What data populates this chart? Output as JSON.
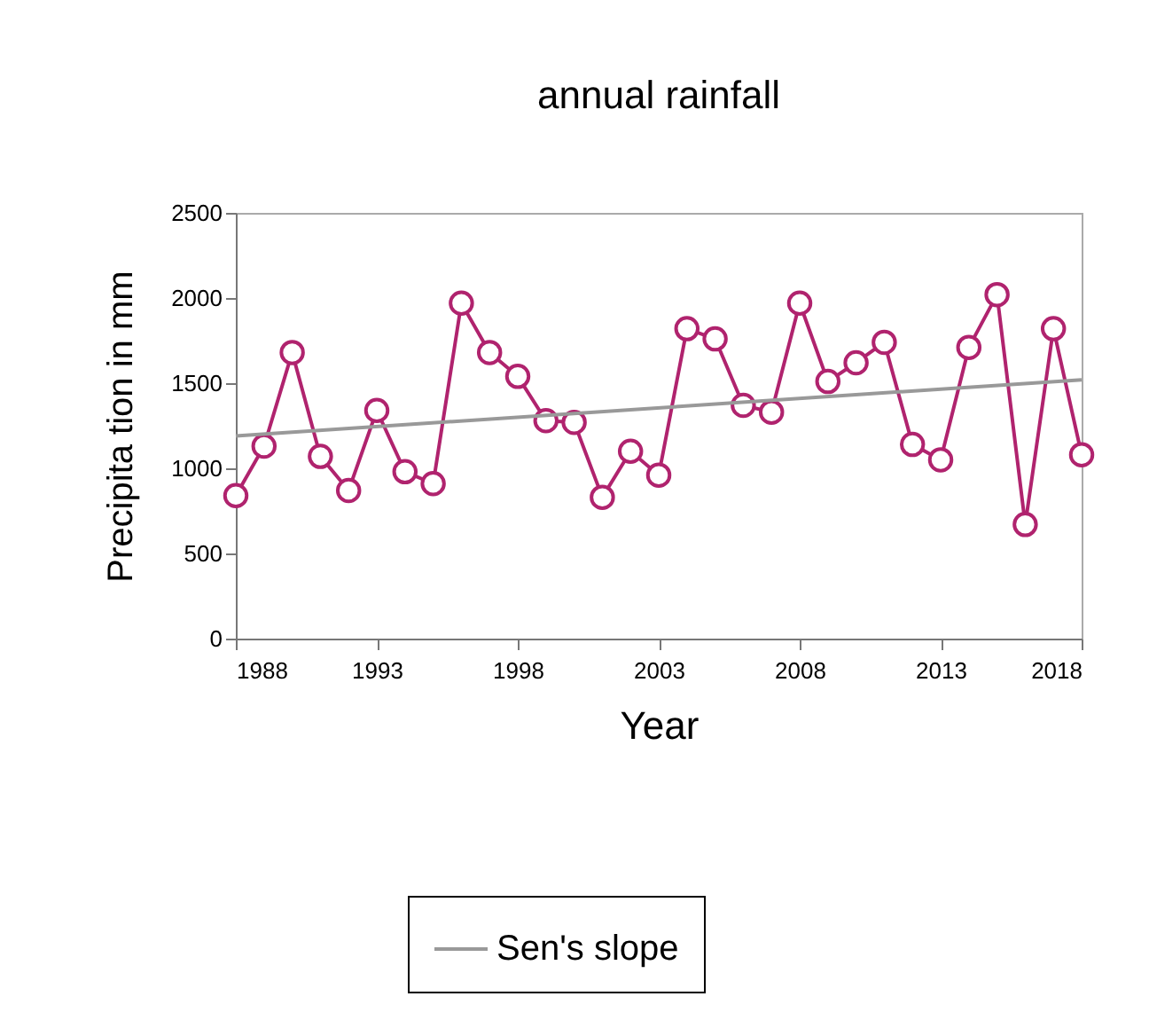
{
  "chart_data": {
    "type": "line",
    "title": "annual rainfall",
    "xlabel": "Year",
    "ylabel": "Precipita tion in mm",
    "x": [
      1988,
      1989,
      1990,
      1991,
      1992,
      1993,
      1994,
      1995,
      1996,
      1997,
      1998,
      1999,
      2000,
      2001,
      2002,
      2003,
      2004,
      2005,
      2006,
      2007,
      2008,
      2009,
      2010,
      2011,
      2012,
      2013,
      2014,
      2015,
      2016,
      2017,
      2018
    ],
    "series": [
      {
        "color": "#b0236e",
        "values": [
          840,
          1130,
          1680,
          1070,
          870,
          1340,
          980,
          910,
          1970,
          1680,
          1540,
          1280,
          1270,
          830,
          1100,
          960,
          1820,
          1760,
          1370,
          1330,
          1970,
          1510,
          1620,
          1740,
          1140,
          1050,
          1710,
          2020,
          670,
          1820,
          1080
        ]
      },
      {
        "name": "Sen's slope",
        "type": "line",
        "color": "#999999",
        "marker": "none",
        "x": [
          1988,
          2018
        ],
        "values": [
          1190,
          1520
        ]
      }
    ],
    "xlim": [
      1988,
      2018
    ],
    "xticks": [
      1988,
      1993,
      1998,
      2003,
      2008,
      2013,
      2018
    ],
    "ylim": [
      0,
      2500
    ],
    "yticks": [
      0,
      500,
      1000,
      1500,
      2000,
      2500
    ],
    "grid": false,
    "legend": "bottom",
    "marker": "circle",
    "line_style": "solid"
  }
}
